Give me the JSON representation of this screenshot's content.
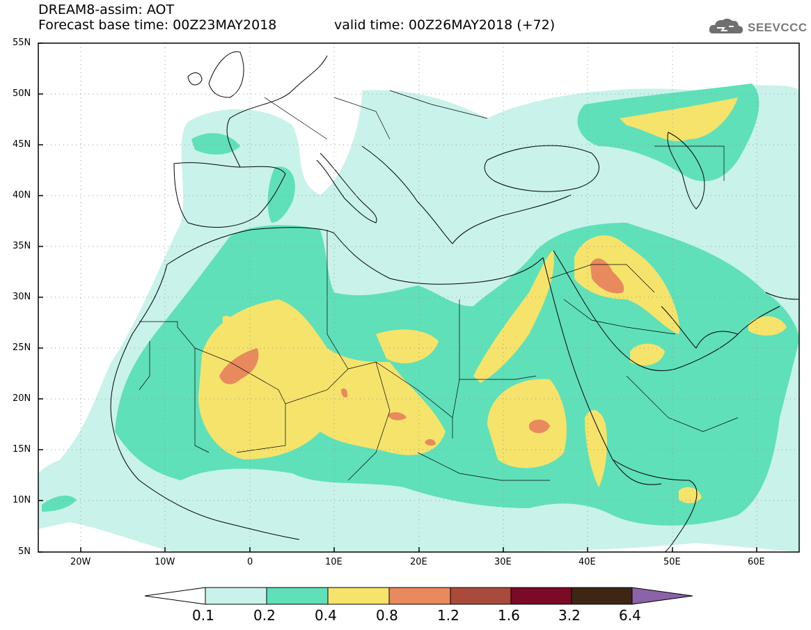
{
  "header": {
    "line1": "DREAM8-assim: AOT",
    "line2": "Forecast base time: 00Z23MAY2018",
    "valid": "valid time: 00Z26MAY2018 (+72)"
  },
  "logo": {
    "text": "SEEVCCC",
    "icon": "cloud-logo-icon"
  },
  "axes": {
    "lat_labels": [
      "55N",
      "50N",
      "45N",
      "40N",
      "35N",
      "30N",
      "25N",
      "20N",
      "15N",
      "10N",
      "5N"
    ],
    "lon_labels": [
      "20W",
      "10W",
      "0",
      "10E",
      "20E",
      "30E",
      "40E",
      "50E",
      "60E"
    ]
  },
  "colorbar": {
    "ticks": [
      "0.1",
      "0.2",
      "0.4",
      "0.8",
      "1.2",
      "1.6",
      "3.2",
      "6.4"
    ],
    "colors": [
      "#c8f2ea",
      "#5fe0b8",
      "#f5e36c",
      "#e9895e",
      "#a94a3d",
      "#7a0a26",
      "#3d2714",
      "#8a63a8"
    ]
  }
}
